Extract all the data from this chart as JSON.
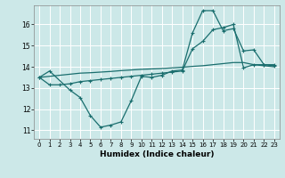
{
  "xlabel": "Humidex (Indice chaleur)",
  "bg_color": "#cce8e8",
  "grid_color": "#ffffff",
  "line_color": "#1a6e6e",
  "x_ticks": [
    0,
    1,
    2,
    3,
    4,
    5,
    6,
    7,
    8,
    9,
    10,
    11,
    12,
    13,
    14,
    15,
    16,
    17,
    18,
    19,
    20,
    21,
    22,
    23
  ],
  "y_ticks": [
    11,
    12,
    13,
    14,
    15,
    16
  ],
  "ylim": [
    10.6,
    16.9
  ],
  "xlim": [
    -0.5,
    23.5
  ],
  "line1_x": [
    0,
    1,
    3,
    4,
    5,
    6,
    7,
    8,
    9,
    10,
    11,
    12,
    13,
    14,
    15,
    16,
    17,
    18,
    19,
    20,
    21,
    22,
    23
  ],
  "line1_y": [
    13.5,
    13.8,
    12.9,
    12.55,
    11.7,
    11.15,
    11.25,
    11.4,
    12.4,
    13.55,
    13.5,
    13.6,
    13.8,
    13.85,
    15.6,
    16.65,
    16.65,
    15.7,
    15.8,
    14.75,
    14.8,
    14.1,
    14.05
  ],
  "line2_x": [
    0,
    1,
    2,
    3,
    4,
    5,
    6,
    7,
    8,
    9,
    10,
    11,
    12,
    13,
    14,
    15,
    16,
    17,
    18,
    19,
    20,
    21,
    22,
    23
  ],
  "line2_y": [
    13.5,
    13.15,
    13.15,
    13.2,
    13.3,
    13.35,
    13.4,
    13.45,
    13.5,
    13.55,
    13.6,
    13.65,
    13.7,
    13.75,
    13.8,
    14.85,
    15.2,
    15.75,
    15.85,
    16.0,
    13.95,
    14.1,
    14.1,
    14.1
  ],
  "line3_x": [
    0,
    1,
    2,
    3,
    4,
    5,
    6,
    7,
    8,
    9,
    10,
    11,
    12,
    13,
    14,
    15,
    16,
    17,
    18,
    19,
    20,
    21,
    22,
    23
  ],
  "line3_y": [
    13.5,
    13.55,
    13.6,
    13.65,
    13.7,
    13.72,
    13.75,
    13.78,
    13.82,
    13.85,
    13.88,
    13.9,
    13.92,
    13.95,
    13.98,
    14.02,
    14.05,
    14.1,
    14.15,
    14.2,
    14.2,
    14.1,
    14.05,
    14.0
  ]
}
